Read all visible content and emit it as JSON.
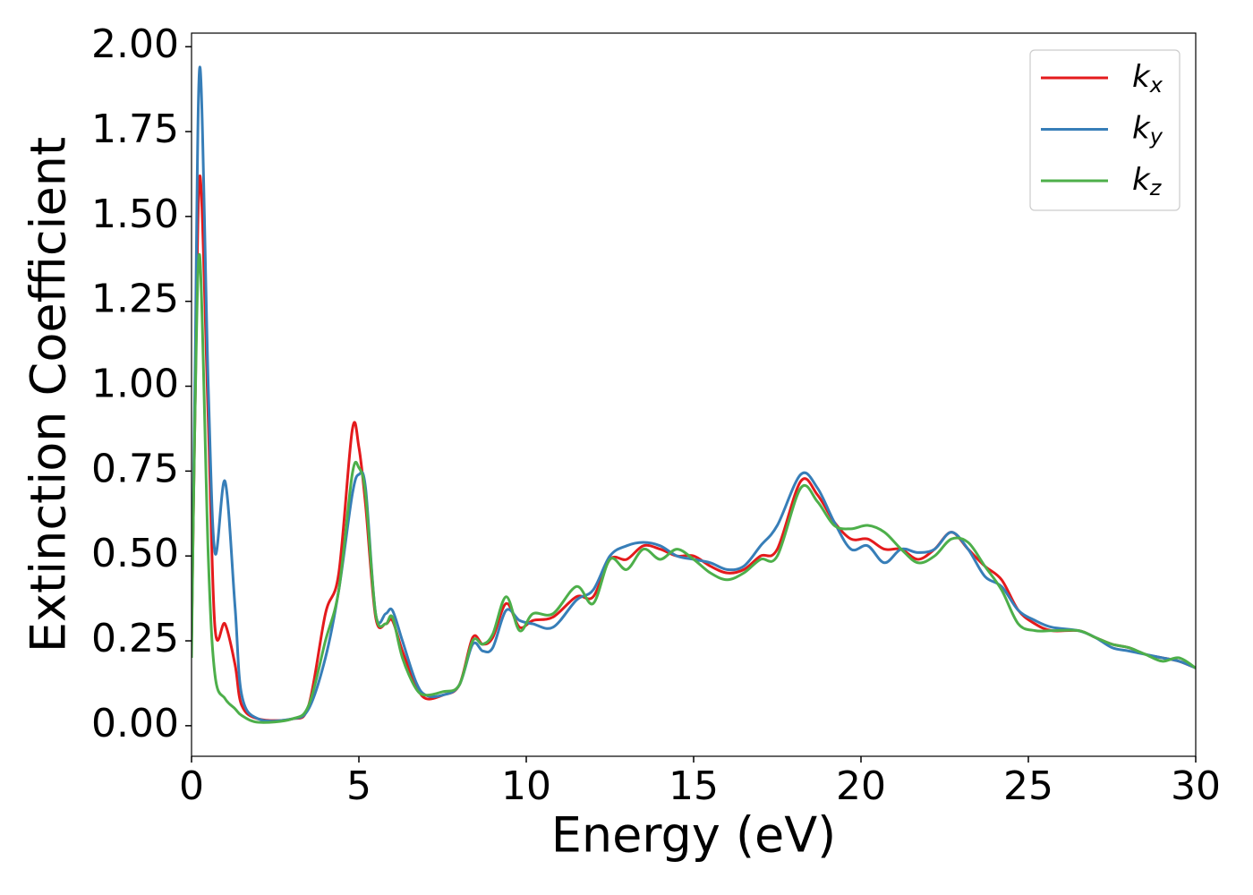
{
  "chart_data": {
    "type": "line",
    "x_label": "Energy (eV)",
    "y_label": "Extinction Coefficient",
    "x": [
      0,
      0.1,
      0.25,
      0.5,
      0.7,
      1.0,
      1.3,
      1.5,
      2,
      3,
      3.5,
      4,
      4.4,
      4.8,
      5.0,
      5.2,
      5.5,
      5.8,
      6.0,
      6.3,
      6.7,
      7.0,
      7.5,
      8.0,
      8.4,
      8.7,
      9.0,
      9.4,
      9.8,
      10.2,
      10.8,
      11.5,
      12,
      12.5,
      13,
      13.5,
      14,
      14.5,
      15,
      15.5,
      16,
      16.5,
      17,
      17.5,
      18.2,
      18.7,
      19.2,
      19.7,
      20.2,
      20.7,
      21.2,
      21.7,
      22.2,
      22.7,
      23.2,
      23.7,
      24.2,
      24.7,
      25.2,
      25.7,
      26.5,
      27,
      27.5,
      28,
      28.5,
      29,
      29.5,
      30
    ],
    "series": [
      {
        "name": "kx",
        "color": "#e41a1c",
        "values": [
          0.25,
          0.9,
          1.62,
          0.9,
          0.29,
          0.3,
          0.18,
          0.06,
          0.02,
          0.02,
          0.06,
          0.33,
          0.45,
          0.87,
          0.82,
          0.65,
          0.32,
          0.3,
          0.31,
          0.22,
          0.12,
          0.08,
          0.09,
          0.12,
          0.26,
          0.24,
          0.26,
          0.36,
          0.29,
          0.31,
          0.32,
          0.38,
          0.38,
          0.49,
          0.49,
          0.53,
          0.52,
          0.5,
          0.5,
          0.47,
          0.45,
          0.46,
          0.5,
          0.52,
          0.72,
          0.68,
          0.6,
          0.55,
          0.55,
          0.52,
          0.52,
          0.49,
          0.52,
          0.57,
          0.52,
          0.47,
          0.43,
          0.34,
          0.3,
          0.28,
          0.28,
          0.26,
          0.24,
          0.23,
          0.21,
          0.2,
          0.19,
          0.17
        ]
      },
      {
        "name": "ky",
        "color": "#377eb8",
        "values": [
          0.25,
          1.0,
          1.94,
          1.0,
          0.51,
          0.72,
          0.35,
          0.09,
          0.02,
          0.02,
          0.05,
          0.2,
          0.4,
          0.68,
          0.74,
          0.7,
          0.33,
          0.33,
          0.34,
          0.25,
          0.13,
          0.09,
          0.09,
          0.12,
          0.24,
          0.22,
          0.23,
          0.34,
          0.31,
          0.3,
          0.29,
          0.37,
          0.4,
          0.5,
          0.53,
          0.54,
          0.53,
          0.5,
          0.49,
          0.48,
          0.46,
          0.47,
          0.53,
          0.59,
          0.74,
          0.7,
          0.6,
          0.52,
          0.53,
          0.48,
          0.52,
          0.51,
          0.52,
          0.57,
          0.52,
          0.44,
          0.41,
          0.34,
          0.31,
          0.29,
          0.28,
          0.26,
          0.23,
          0.22,
          0.21,
          0.2,
          0.19,
          0.17
        ]
      },
      {
        "name": "kz",
        "color": "#4daf4a",
        "values": [
          0.2,
          0.9,
          1.38,
          0.5,
          0.15,
          0.08,
          0.05,
          0.03,
          0.01,
          0.02,
          0.06,
          0.25,
          0.4,
          0.74,
          0.76,
          0.68,
          0.33,
          0.3,
          0.32,
          0.2,
          0.11,
          0.09,
          0.1,
          0.12,
          0.25,
          0.24,
          0.27,
          0.38,
          0.28,
          0.33,
          0.33,
          0.41,
          0.36,
          0.49,
          0.46,
          0.52,
          0.49,
          0.52,
          0.49,
          0.45,
          0.43,
          0.45,
          0.49,
          0.5,
          0.7,
          0.66,
          0.59,
          0.58,
          0.59,
          0.57,
          0.52,
          0.48,
          0.5,
          0.55,
          0.54,
          0.47,
          0.4,
          0.3,
          0.28,
          0.28,
          0.28,
          0.26,
          0.24,
          0.23,
          0.21,
          0.19,
          0.2,
          0.17
        ]
      }
    ],
    "xlim": [
      0,
      30
    ],
    "xticks": [
      0,
      5,
      10,
      15,
      20,
      25,
      30
    ],
    "ylim": [
      -0.09,
      2.04
    ],
    "yticks": [
      {
        "value": 0,
        "label": "0.00"
      },
      {
        "value": 0.25,
        "label": "0.25"
      },
      {
        "value": 0.5,
        "label": "0.50"
      },
      {
        "value": 0.75,
        "label": "0.75"
      },
      {
        "value": 1,
        "label": "1.00"
      },
      {
        "value": 1.25,
        "label": "1.25"
      },
      {
        "value": 1.5,
        "label": "1.50"
      },
      {
        "value": 1.75,
        "label": "1.75"
      },
      {
        "value": 2,
        "label": "2.00"
      }
    ],
    "grid": false,
    "legend": "upper right"
  }
}
